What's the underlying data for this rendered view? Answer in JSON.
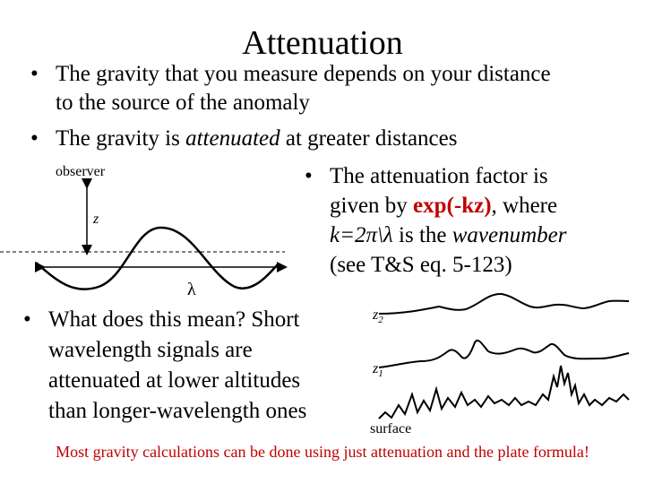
{
  "slide": {
    "title": "Attenuation",
    "bullets": {
      "b1_line1": "The gravity that you measure depends on your distance",
      "b1_line2": "to the source of the anomaly",
      "b2_pre": "The gravity is ",
      "b2_em": "attenuated",
      "b2_post": " at greater distances",
      "b3_line1": "The attenuation factor is",
      "b3_l2_pre": "given by ",
      "b3_l2_formula": "exp(-kz)",
      "b3_l2_post": ", where",
      "b3_l3_pre": "k=2π\\λ",
      "b3_l3_mid": " is the ",
      "b3_l3_em": "wavenumber",
      "b3_line4": "(see T&S eq. 5-123)",
      "b4_line1": "What does this mean? Short",
      "b4_line2": "wavelength signals are",
      "b4_line3": "attenuated at lower altitudes",
      "b4_line4": "than longer-wavelength ones"
    },
    "diagram_left": {
      "observer_label": "observer",
      "z_label": "z",
      "lambda_label": "λ"
    },
    "diagram_right": {
      "z2_label": "z",
      "z2_sub": "2",
      "z1_label": "z",
      "z1_sub": "1",
      "surface_label": "surface"
    },
    "footer": "Most gravity calculations can be done using just attenuation and the plate formula!",
    "colors": {
      "accent": "#c00000"
    }
  }
}
